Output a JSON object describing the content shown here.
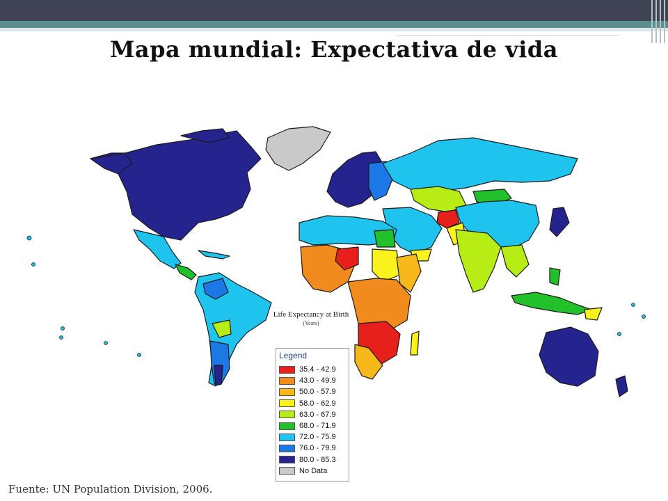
{
  "slide": {
    "title": "Mapa mundial: Expectativa de vida",
    "source": "Fuente: UN Population Division, 2006."
  },
  "map": {
    "title": "Life Expectancy at Birth",
    "subtitle": "(Years)",
    "legend_heading": "Legend",
    "legend": [
      {
        "label": "35.4 - 42.9",
        "color": "#e8201c"
      },
      {
        "label": "43.0 - 49.9",
        "color": "#f28b1e"
      },
      {
        "label": "50.0 - 57.9",
        "color": "#f7b819"
      },
      {
        "label": "58.0 - 62.9",
        "color": "#f9f21c"
      },
      {
        "label": "63.0 - 67.9",
        "color": "#b7ec14"
      },
      {
        "label": "68.0 - 71.9",
        "color": "#22c02a"
      },
      {
        "label": "72.0 - 75.9",
        "color": "#1fc4ee"
      },
      {
        "label": "76.0 - 79.9",
        "color": "#1c78e4"
      },
      {
        "label": "80.0 - 85.3",
        "color": "#25238e"
      },
      {
        "label": "No Data",
        "color": "#c9c9c9"
      }
    ]
  }
}
